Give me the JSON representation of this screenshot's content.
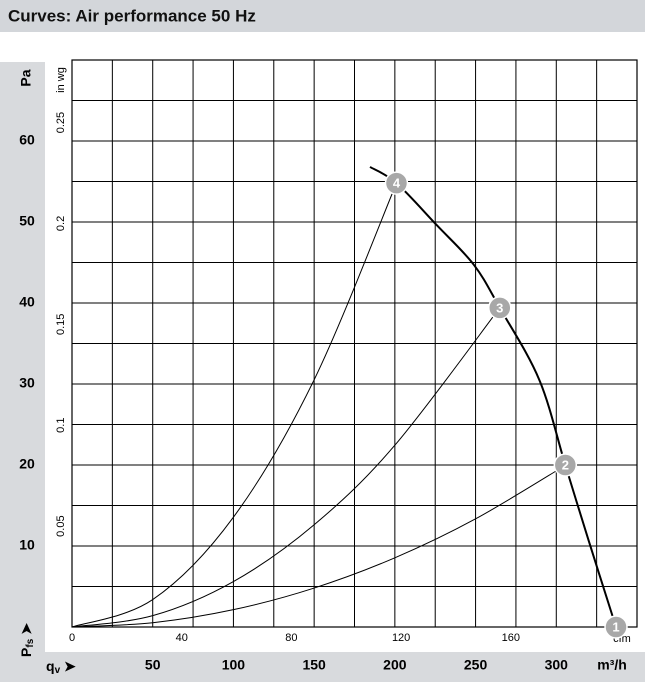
{
  "title": "Curves: Air performance 50 Hz",
  "chart_data": {
    "type": "line",
    "y_unit": "Pa",
    "y2_unit": "in wg",
    "x_unit": "m³/h",
    "x2_unit": "cfm",
    "y_label": {
      "main": "P",
      "sub": "fs"
    },
    "x_label": {
      "main": "q",
      "sub": "v"
    },
    "xlim": [
      0,
      350
    ],
    "ylim": [
      0,
      70
    ],
    "x2lim": [
      0,
      206
    ],
    "y2lim": [
      0,
      0.281
    ],
    "xticks": [
      50,
      100,
      150,
      200,
      250,
      300
    ],
    "yticks": [
      10,
      20,
      30,
      40,
      50,
      60
    ],
    "x2ticks": [
      0,
      40,
      80,
      120,
      160
    ],
    "y2ticks": [
      0.05,
      0.1,
      0.15,
      0.2,
      0.25
    ],
    "xgrid": [
      0,
      25,
      50,
      75,
      100,
      125,
      150,
      175,
      200,
      225,
      250,
      275,
      300,
      325,
      350
    ],
    "ygrid": [
      0,
      5,
      10,
      15,
      20,
      25,
      30,
      35,
      40,
      45,
      50,
      55,
      60,
      65,
      70
    ],
    "series": [
      {
        "color": "#000000",
        "width": 2,
        "x": [
          184.6,
          201,
          226,
          249,
          265,
          289.5,
          305.6,
          320,
          337
        ],
        "values": [
          56.8,
          54.8,
          49.6,
          44.7,
          39.4,
          30.5,
          20,
          10.7,
          0
        ]
      },
      {
        "color": "#000000",
        "width": 1,
        "x": [
          0,
          50,
          100,
          150,
          201
        ],
        "values": [
          0,
          3.39,
          13.56,
          30.52,
          54.8
        ]
      },
      {
        "color": "#000000",
        "width": 1,
        "x": [
          0,
          50,
          100,
          150,
          200,
          265
        ],
        "values": [
          0,
          1.4,
          5.61,
          12.62,
          22.44,
          39.4
        ]
      },
      {
        "color": "#000000",
        "width": 1,
        "x": [
          0,
          50,
          100,
          150,
          200,
          250,
          306
        ],
        "values": [
          0,
          0.53,
          2.14,
          4.81,
          8.54,
          13.35,
          20
        ]
      }
    ],
    "annotations": [
      {
        "label": "1",
        "x": 337,
        "y": 0
      },
      {
        "label": "2",
        "x": 305.6,
        "y": 20
      },
      {
        "label": "3",
        "x": 265,
        "y": 39.4
      },
      {
        "label": "4",
        "x": 201,
        "y": 54.8
      }
    ]
  }
}
